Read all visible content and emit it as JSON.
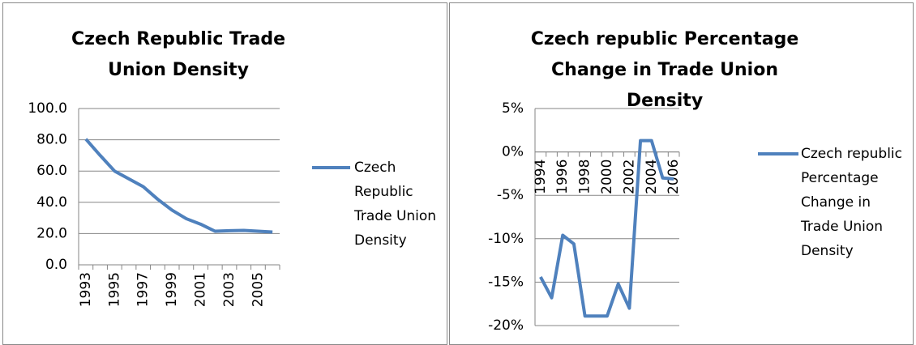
{
  "chart_data": [
    {
      "type": "line",
      "title": "Czech Republic Trade Union Density",
      "categories": [
        "1993",
        null,
        "1995",
        null,
        "1997",
        null,
        "1999",
        null,
        "2001",
        null,
        "2003",
        null,
        "2005",
        null
      ],
      "series": [
        {
          "name": "Czech Republic Trade Union Density",
          "color": "#4f81bd",
          "values": [
            80.5,
            70,
            60,
            55,
            50,
            42,
            35,
            29.5,
            26,
            21.5,
            21.8,
            22,
            21.5,
            21
          ]
        }
      ],
      "ylim": [
        0,
        100
      ],
      "yticks": [
        {
          "value": 0,
          "label": "0.0"
        },
        {
          "value": 20,
          "label": "20.0"
        },
        {
          "value": 40,
          "label": "40.0"
        },
        {
          "value": 60,
          "label": "60.0"
        },
        {
          "value": 80,
          "label": "80.0"
        },
        {
          "value": 100,
          "label": "100.0"
        }
      ],
      "grid": true,
      "legend": "right"
    },
    {
      "type": "line",
      "title": "Czech republic Percentage Change in Trade Union Density",
      "categories": [
        "1994",
        null,
        "1996",
        null,
        "1998",
        null,
        "2000",
        null,
        "2002",
        null,
        "2004",
        null,
        "2006"
      ],
      "series": [
        {
          "name": "Czech republic Percentage Change in Trade Union Density",
          "color": "#4f81bd",
          "values": [
            -14.4,
            -16.8,
            -9.6,
            -10.6,
            -18.9,
            -18.9,
            -18.9,
            -15.2,
            -18,
            1.3,
            1.3,
            -3,
            -3.1
          ]
        }
      ],
      "ylim": [
        -20,
        5
      ],
      "yticks": [
        {
          "value": -20,
          "label": "-20%"
        },
        {
          "value": -15,
          "label": "-15%"
        },
        {
          "value": -10,
          "label": "-10%"
        },
        {
          "value": -5,
          "label": "-5%"
        },
        {
          "value": 0,
          "label": "0%"
        },
        {
          "value": 5,
          "label": "5%"
        }
      ],
      "grid": true,
      "legend": "right"
    }
  ]
}
